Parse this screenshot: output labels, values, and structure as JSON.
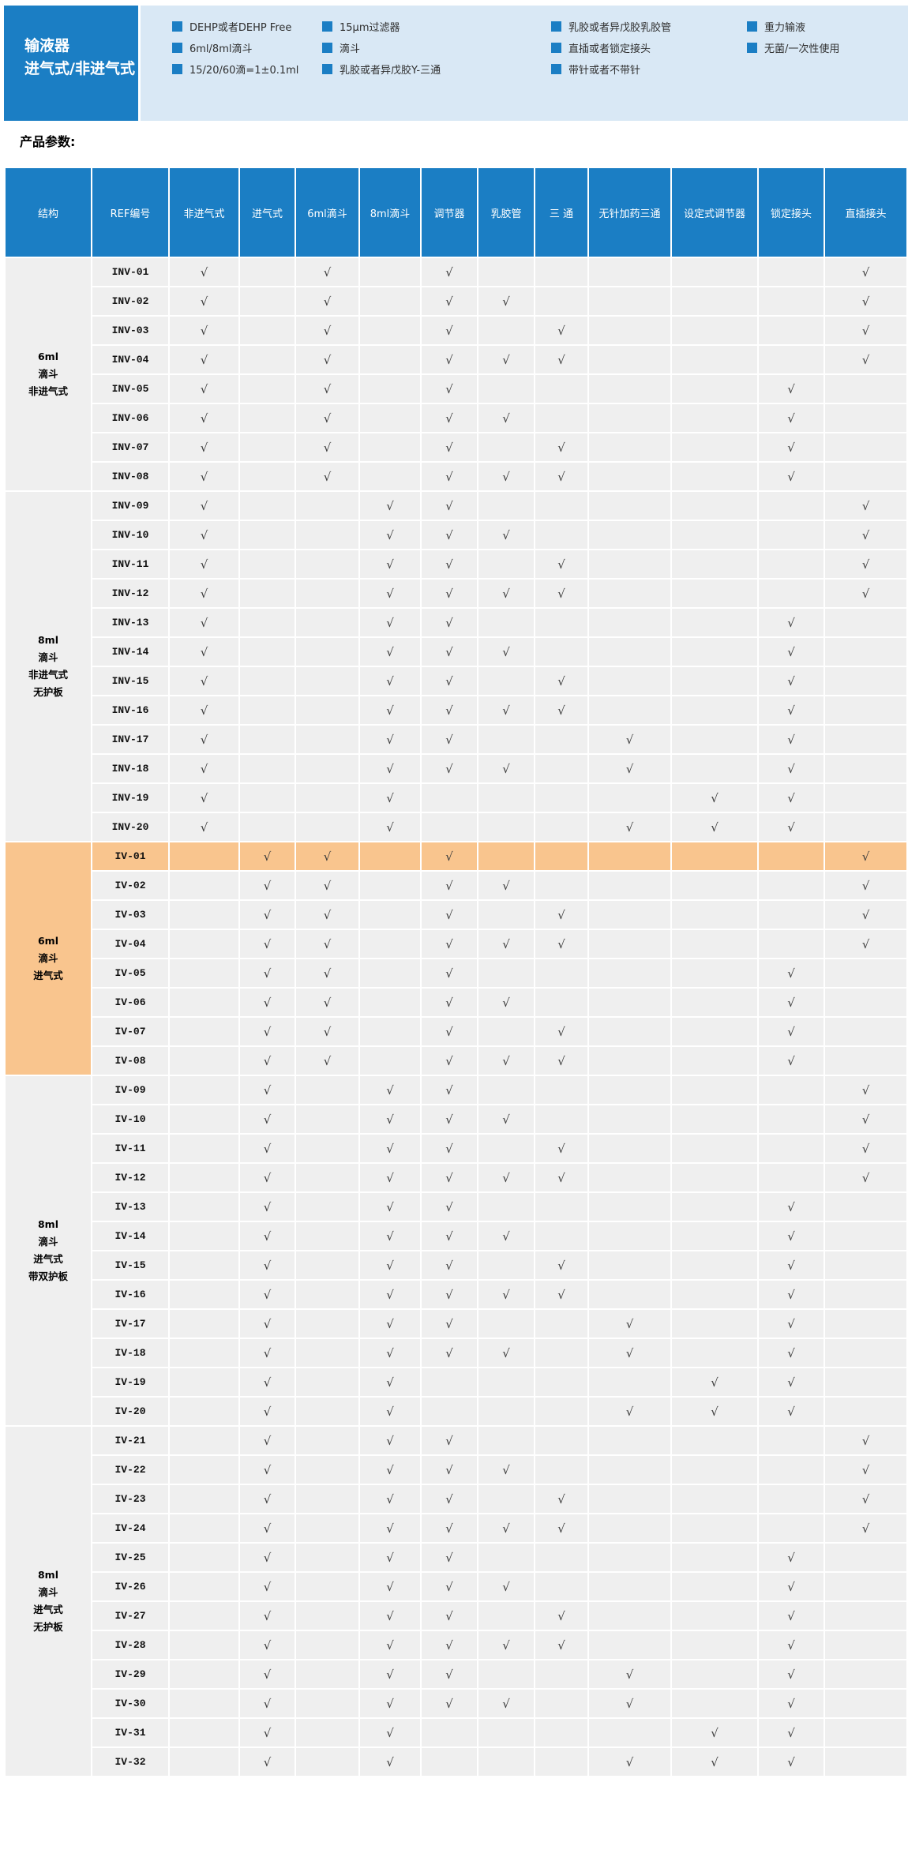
{
  "banner": {
    "title_line1": "输液器",
    "title_line2": "进气式/非进气式",
    "feature_columns": [
      [
        "DEHP或者DEHP Free",
        "6ml/8ml滴斗",
        "15/20/60滴=1±0.1ml"
      ],
      [
        "15μm过滤器",
        "滴斗",
        "乳胶或者异戊胶Y-三通"
      ],
      [
        "乳胶或者异戊胶乳胶管",
        "直插或者锁定接头",
        "带针或者不带针"
      ],
      [
        "重力输液",
        "无菌/一次性使用"
      ]
    ]
  },
  "section_label": "产品参数:",
  "colors": {
    "brand_blue": "#1b7ec4",
    "panel_blue": "#d9e8f5",
    "row_bg": "#efefef",
    "highlight_orange": "#f9c58e",
    "check_color": "#3d3d3d"
  },
  "table": {
    "check_mark": "√",
    "columns": [
      "结构",
      "REF编号",
      "非进气式",
      "进气式",
      "6ml滴斗",
      "8ml滴斗",
      "调节器",
      "乳胶管",
      "三 通",
      "无针加药三通",
      "设定式调节器",
      "锁定接头",
      "直插接头"
    ],
    "feature_columns": [
      "非进气式",
      "进气式",
      "6ml滴斗",
      "8ml滴斗",
      "调节器",
      "乳胶管",
      "三 通",
      "无针加药三通",
      "设定式调节器",
      "锁定接头",
      "直插接头"
    ],
    "highlighted_ref": "IV-01",
    "groups": [
      {
        "label_lines": [
          "6ml",
          "滴斗",
          "非进气式"
        ],
        "rows": [
          {
            "ref": "INV-01",
            "checks": [
              1,
              0,
              1,
              0,
              1,
              0,
              0,
              0,
              0,
              0,
              1
            ]
          },
          {
            "ref": "INV-02",
            "checks": [
              1,
              0,
              1,
              0,
              1,
              1,
              0,
              0,
              0,
              0,
              1
            ]
          },
          {
            "ref": "INV-03",
            "checks": [
              1,
              0,
              1,
              0,
              1,
              0,
              1,
              0,
              0,
              0,
              1
            ]
          },
          {
            "ref": "INV-04",
            "checks": [
              1,
              0,
              1,
              0,
              1,
              1,
              1,
              0,
              0,
              0,
              1
            ]
          },
          {
            "ref": "INV-05",
            "checks": [
              1,
              0,
              1,
              0,
              1,
              0,
              0,
              0,
              0,
              1,
              0
            ]
          },
          {
            "ref": "INV-06",
            "checks": [
              1,
              0,
              1,
              0,
              1,
              1,
              0,
              0,
              0,
              1,
              0
            ]
          },
          {
            "ref": "INV-07",
            "checks": [
              1,
              0,
              1,
              0,
              1,
              0,
              1,
              0,
              0,
              1,
              0
            ]
          },
          {
            "ref": "INV-08",
            "checks": [
              1,
              0,
              1,
              0,
              1,
              1,
              1,
              0,
              0,
              1,
              0
            ]
          }
        ]
      },
      {
        "label_lines": [
          "8ml",
          "滴斗",
          "非进气式",
          "无护板"
        ],
        "rows": [
          {
            "ref": "INV-09",
            "checks": [
              1,
              0,
              0,
              1,
              1,
              0,
              0,
              0,
              0,
              0,
              1
            ]
          },
          {
            "ref": "INV-10",
            "checks": [
              1,
              0,
              0,
              1,
              1,
              1,
              0,
              0,
              0,
              0,
              1
            ]
          },
          {
            "ref": "INV-11",
            "checks": [
              1,
              0,
              0,
              1,
              1,
              0,
              1,
              0,
              0,
              0,
              1
            ]
          },
          {
            "ref": "INV-12",
            "checks": [
              1,
              0,
              0,
              1,
              1,
              1,
              1,
              0,
              0,
              0,
              1
            ]
          },
          {
            "ref": "INV-13",
            "checks": [
              1,
              0,
              0,
              1,
              1,
              0,
              0,
              0,
              0,
              1,
              0
            ]
          },
          {
            "ref": "INV-14",
            "checks": [
              1,
              0,
              0,
              1,
              1,
              1,
              0,
              0,
              0,
              1,
              0
            ]
          },
          {
            "ref": "INV-15",
            "checks": [
              1,
              0,
              0,
              1,
              1,
              0,
              1,
              0,
              0,
              1,
              0
            ]
          },
          {
            "ref": "INV-16",
            "checks": [
              1,
              0,
              0,
              1,
              1,
              1,
              1,
              0,
              0,
              1,
              0
            ]
          },
          {
            "ref": "INV-17",
            "checks": [
              1,
              0,
              0,
              1,
              1,
              0,
              0,
              1,
              0,
              1,
              0
            ]
          },
          {
            "ref": "INV-18",
            "checks": [
              1,
              0,
              0,
              1,
              1,
              1,
              0,
              1,
              0,
              1,
              0
            ]
          },
          {
            "ref": "INV-19",
            "checks": [
              1,
              0,
              0,
              1,
              0,
              0,
              0,
              0,
              1,
              1,
              0
            ]
          },
          {
            "ref": "INV-20",
            "checks": [
              1,
              0,
              0,
              1,
              0,
              0,
              0,
              1,
              1,
              1,
              0
            ]
          }
        ]
      },
      {
        "label_lines": [
          "6ml",
          "滴斗",
          "进气式"
        ],
        "rows": [
          {
            "ref": "IV-01",
            "checks": [
              0,
              1,
              1,
              0,
              1,
              0,
              0,
              0,
              0,
              0,
              1
            ],
            "highlight": true
          },
          {
            "ref": "IV-02",
            "checks": [
              0,
              1,
              1,
              0,
              1,
              1,
              0,
              0,
              0,
              0,
              1
            ]
          },
          {
            "ref": "IV-03",
            "checks": [
              0,
              1,
              1,
              0,
              1,
              0,
              1,
              0,
              0,
              0,
              1
            ]
          },
          {
            "ref": "IV-04",
            "checks": [
              0,
              1,
              1,
              0,
              1,
              1,
              1,
              0,
              0,
              0,
              1
            ]
          },
          {
            "ref": "IV-05",
            "checks": [
              0,
              1,
              1,
              0,
              1,
              0,
              0,
              0,
              0,
              1,
              0
            ]
          },
          {
            "ref": "IV-06",
            "checks": [
              0,
              1,
              1,
              0,
              1,
              1,
              0,
              0,
              0,
              1,
              0
            ]
          },
          {
            "ref": "IV-07",
            "checks": [
              0,
              1,
              1,
              0,
              1,
              0,
              1,
              0,
              0,
              1,
              0
            ]
          },
          {
            "ref": "IV-08",
            "checks": [
              0,
              1,
              1,
              0,
              1,
              1,
              1,
              0,
              0,
              1,
              0
            ]
          }
        ]
      },
      {
        "label_lines": [
          "8ml",
          "滴斗",
          "进气式",
          "带双护板"
        ],
        "rows": [
          {
            "ref": "IV-09",
            "checks": [
              0,
              1,
              0,
              1,
              1,
              0,
              0,
              0,
              0,
              0,
              1
            ]
          },
          {
            "ref": "IV-10",
            "checks": [
              0,
              1,
              0,
              1,
              1,
              1,
              0,
              0,
              0,
              0,
              1
            ]
          },
          {
            "ref": "IV-11",
            "checks": [
              0,
              1,
              0,
              1,
              1,
              0,
              1,
              0,
              0,
              0,
              1
            ]
          },
          {
            "ref": "IV-12",
            "checks": [
              0,
              1,
              0,
              1,
              1,
              1,
              1,
              0,
              0,
              0,
              1
            ]
          },
          {
            "ref": "IV-13",
            "checks": [
              0,
              1,
              0,
              1,
              1,
              0,
              0,
              0,
              0,
              1,
              0
            ]
          },
          {
            "ref": "IV-14",
            "checks": [
              0,
              1,
              0,
              1,
              1,
              1,
              0,
              0,
              0,
              1,
              0
            ]
          },
          {
            "ref": "IV-15",
            "checks": [
              0,
              1,
              0,
              1,
              1,
              0,
              1,
              0,
              0,
              1,
              0
            ]
          },
          {
            "ref": "IV-16",
            "checks": [
              0,
              1,
              0,
              1,
              1,
              1,
              1,
              0,
              0,
              1,
              0
            ]
          },
          {
            "ref": "IV-17",
            "checks": [
              0,
              1,
              0,
              1,
              1,
              0,
              0,
              1,
              0,
              1,
              0
            ]
          },
          {
            "ref": "IV-18",
            "checks": [
              0,
              1,
              0,
              1,
              1,
              1,
              0,
              1,
              0,
              1,
              0
            ]
          },
          {
            "ref": "IV-19",
            "checks": [
              0,
              1,
              0,
              1,
              0,
              0,
              0,
              0,
              1,
              1,
              0
            ]
          },
          {
            "ref": "IV-20",
            "checks": [
              0,
              1,
              0,
              1,
              0,
              0,
              0,
              1,
              1,
              1,
              0
            ]
          }
        ]
      },
      {
        "label_lines": [
          "8ml",
          "滴斗",
          "进气式",
          "无护板"
        ],
        "rows": [
          {
            "ref": "IV-21",
            "checks": [
              0,
              1,
              0,
              1,
              1,
              0,
              0,
              0,
              0,
              0,
              1
            ]
          },
          {
            "ref": "IV-22",
            "checks": [
              0,
              1,
              0,
              1,
              1,
              1,
              0,
              0,
              0,
              0,
              1
            ]
          },
          {
            "ref": "IV-23",
            "checks": [
              0,
              1,
              0,
              1,
              1,
              0,
              1,
              0,
              0,
              0,
              1
            ]
          },
          {
            "ref": "IV-24",
            "checks": [
              0,
              1,
              0,
              1,
              1,
              1,
              1,
              0,
              0,
              0,
              1
            ]
          },
          {
            "ref": "IV-25",
            "checks": [
              0,
              1,
              0,
              1,
              1,
              0,
              0,
              0,
              0,
              1,
              0
            ]
          },
          {
            "ref": "IV-26",
            "checks": [
              0,
              1,
              0,
              1,
              1,
              1,
              0,
              0,
              0,
              1,
              0
            ]
          },
          {
            "ref": "IV-27",
            "checks": [
              0,
              1,
              0,
              1,
              1,
              0,
              1,
              0,
              0,
              1,
              0
            ]
          },
          {
            "ref": "IV-28",
            "checks": [
              0,
              1,
              0,
              1,
              1,
              1,
              1,
              0,
              0,
              1,
              0
            ]
          },
          {
            "ref": "IV-29",
            "checks": [
              0,
              1,
              0,
              1,
              1,
              0,
              0,
              1,
              0,
              1,
              0
            ]
          },
          {
            "ref": "IV-30",
            "checks": [
              0,
              1,
              0,
              1,
              1,
              1,
              0,
              1,
              0,
              1,
              0
            ]
          },
          {
            "ref": "IV-31",
            "checks": [
              0,
              1,
              0,
              1,
              0,
              0,
              0,
              0,
              1,
              1,
              0
            ]
          },
          {
            "ref": "IV-32",
            "checks": [
              0,
              1,
              0,
              1,
              0,
              0,
              0,
              1,
              1,
              1,
              0
            ]
          }
        ]
      }
    ]
  }
}
